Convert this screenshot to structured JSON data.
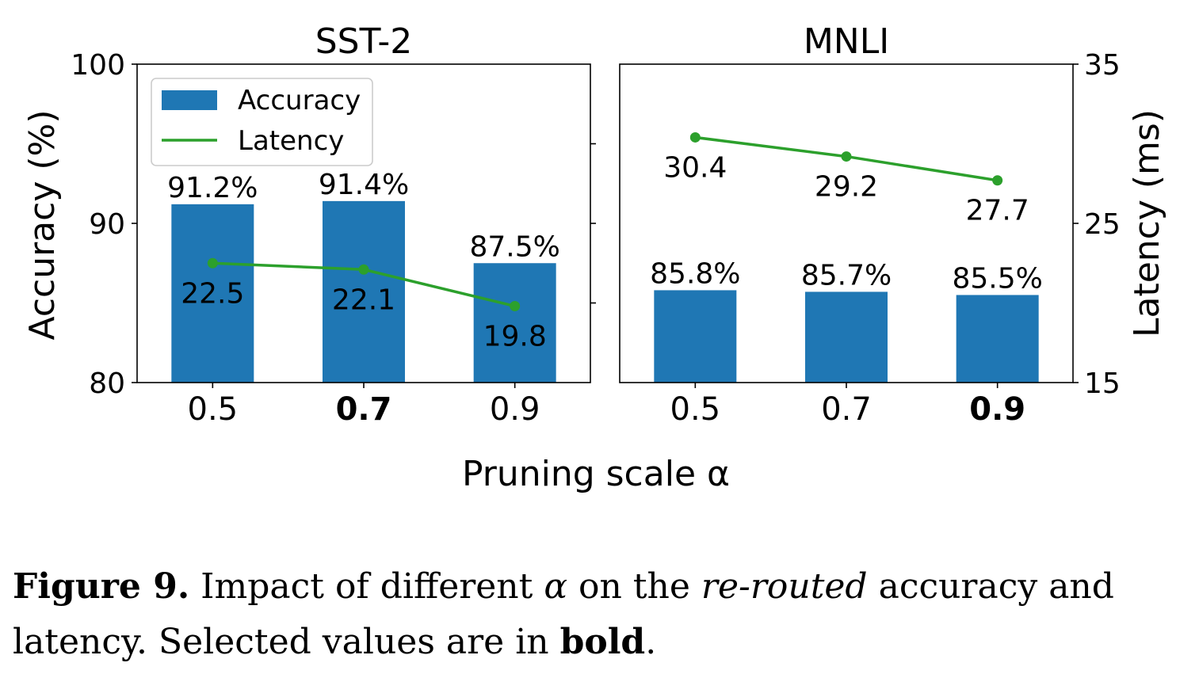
{
  "chart_data": [
    {
      "type": "bar",
      "title": "SST-2",
      "categories": [
        "0.5",
        "0.7",
        "0.9"
      ],
      "selected_category": "0.7",
      "series": [
        {
          "name": "Accuracy",
          "values": [
            91.2,
            91.4,
            87.5
          ],
          "labels": [
            "91.2%",
            "91.4%",
            "87.5%"
          ],
          "axis": "left",
          "color": "#1f77b4"
        },
        {
          "name": "Latency",
          "values": [
            22.5,
            22.1,
            19.8
          ],
          "labels": [
            "22.5",
            "22.1",
            "19.8"
          ],
          "axis": "right",
          "type": "line",
          "color": "#2ca02c"
        }
      ],
      "ylabel": "Accuracy (%)",
      "ylim": [
        80,
        100
      ],
      "yticks": [
        "80",
        "90",
        "100"
      ],
      "y2lim": [
        15,
        35
      ],
      "legend": "top-left"
    },
    {
      "type": "bar",
      "title": "MNLI",
      "categories": [
        "0.5",
        "0.7",
        "0.9"
      ],
      "selected_category": "0.9",
      "series": [
        {
          "name": "Accuracy",
          "values": [
            85.8,
            85.7,
            85.5
          ],
          "labels": [
            "85.8%",
            "85.7%",
            "85.5%"
          ],
          "axis": "left",
          "color": "#1f77b4"
        },
        {
          "name": "Latency",
          "values": [
            30.4,
            29.2,
            27.7
          ],
          "labels": [
            "30.4",
            "29.2",
            "27.7"
          ],
          "axis": "right",
          "type": "line",
          "color": "#2ca02c"
        }
      ],
      "ylim": [
        80,
        100
      ],
      "y2label": "Latency (ms)",
      "y2lim": [
        15,
        35
      ],
      "y2ticks": [
        "15",
        "25",
        "35"
      ]
    }
  ],
  "xlabel": "Pruning scale α",
  "legend": {
    "accuracy": "Accuracy",
    "latency": "Latency"
  },
  "caption": {
    "label": "Figure 9.",
    "part1": " Impact of different ",
    "alpha": "α",
    "part2": " on the ",
    "emph": "re-routed",
    "part3": " accuracy and latency. Selected values are in ",
    "bold": "bold",
    "end": "."
  }
}
